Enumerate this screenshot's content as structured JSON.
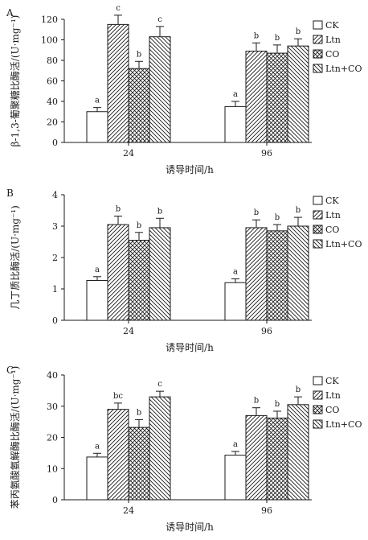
{
  "chart_data": [
    {
      "type": "bar",
      "panel": "A",
      "xlabel": "诱导时间/h",
      "ylabel": "β-1,3-葡聚糖比酶活/(U·mg⁻¹)",
      "categories": [
        "24",
        "96"
      ],
      "ylim": [
        0,
        120
      ],
      "yticks": [
        "0",
        "20",
        "40",
        "60",
        "80",
        "100",
        "120"
      ],
      "series": [
        {
          "name": "CK",
          "values": [
            30,
            35
          ],
          "errors": [
            4,
            5
          ],
          "labels": [
            "a",
            "a"
          ]
        },
        {
          "name": "Ltn",
          "values": [
            115,
            89
          ],
          "errors": [
            9,
            8
          ],
          "labels": [
            "c",
            "b"
          ]
        },
        {
          "name": "CO",
          "values": [
            72,
            87
          ],
          "errors": [
            7,
            8
          ],
          "labels": [
            "b",
            "b"
          ]
        },
        {
          "name": "Ltn+CO",
          "values": [
            103,
            94
          ],
          "errors": [
            10,
            7
          ],
          "labels": [
            "c",
            "b"
          ]
        }
      ]
    },
    {
      "type": "bar",
      "panel": "B",
      "xlabel": "诱导时间/h",
      "ylabel": "几丁质比酶活/(U·mg⁻¹)",
      "categories": [
        "24",
        "96"
      ],
      "ylim": [
        0,
        4
      ],
      "yticks": [
        "0",
        "1",
        "2",
        "3",
        "4"
      ],
      "series": [
        {
          "name": "CK",
          "values": [
            1.27,
            1.2
          ],
          "errors": [
            0.12,
            0.12
          ],
          "labels": [
            "a",
            "a"
          ]
        },
        {
          "name": "Ltn",
          "values": [
            3.05,
            2.95
          ],
          "errors": [
            0.27,
            0.25
          ],
          "labels": [
            "b",
            "b"
          ]
        },
        {
          "name": "CO",
          "values": [
            2.55,
            2.85
          ],
          "errors": [
            0.25,
            0.2
          ],
          "labels": [
            "b",
            "b"
          ]
        },
        {
          "name": "Ltn+CO",
          "values": [
            2.95,
            3.0
          ],
          "errors": [
            0.3,
            0.28
          ],
          "labels": [
            "b",
            "b"
          ]
        }
      ]
    },
    {
      "type": "bar",
      "panel": "C",
      "xlabel": "诱导时间/h",
      "ylabel": "苯丙氨酸氨解酶比酶活/(U·mg⁻¹)",
      "categories": [
        "24",
        "96"
      ],
      "ylim": [
        0,
        40
      ],
      "yticks": [
        "0",
        "10",
        "20",
        "30",
        "40"
      ],
      "series": [
        {
          "name": "CK",
          "values": [
            13.7,
            14.3
          ],
          "errors": [
            1.2,
            1.2
          ],
          "labels": [
            "a",
            "a"
          ]
        },
        {
          "name": "Ltn",
          "values": [
            29,
            27
          ],
          "errors": [
            2,
            2.5
          ],
          "labels": [
            "bc",
            "b"
          ]
        },
        {
          "name": "CO",
          "values": [
            23.2,
            26.2
          ],
          "errors": [
            2.5,
            2.2
          ],
          "labels": [
            "b",
            "b"
          ]
        },
        {
          "name": "Ltn+CO",
          "values": [
            33,
            30.5
          ],
          "errors": [
            1.8,
            2.5
          ],
          "labels": [
            "c",
            "b"
          ]
        }
      ]
    }
  ],
  "colors": {
    "ink": "#1a1a1a",
    "background": "#ffffff"
  },
  "pattern_names": [
    "open",
    "hatch-diagonal",
    "cross-hatch",
    "hatch-reverse"
  ]
}
